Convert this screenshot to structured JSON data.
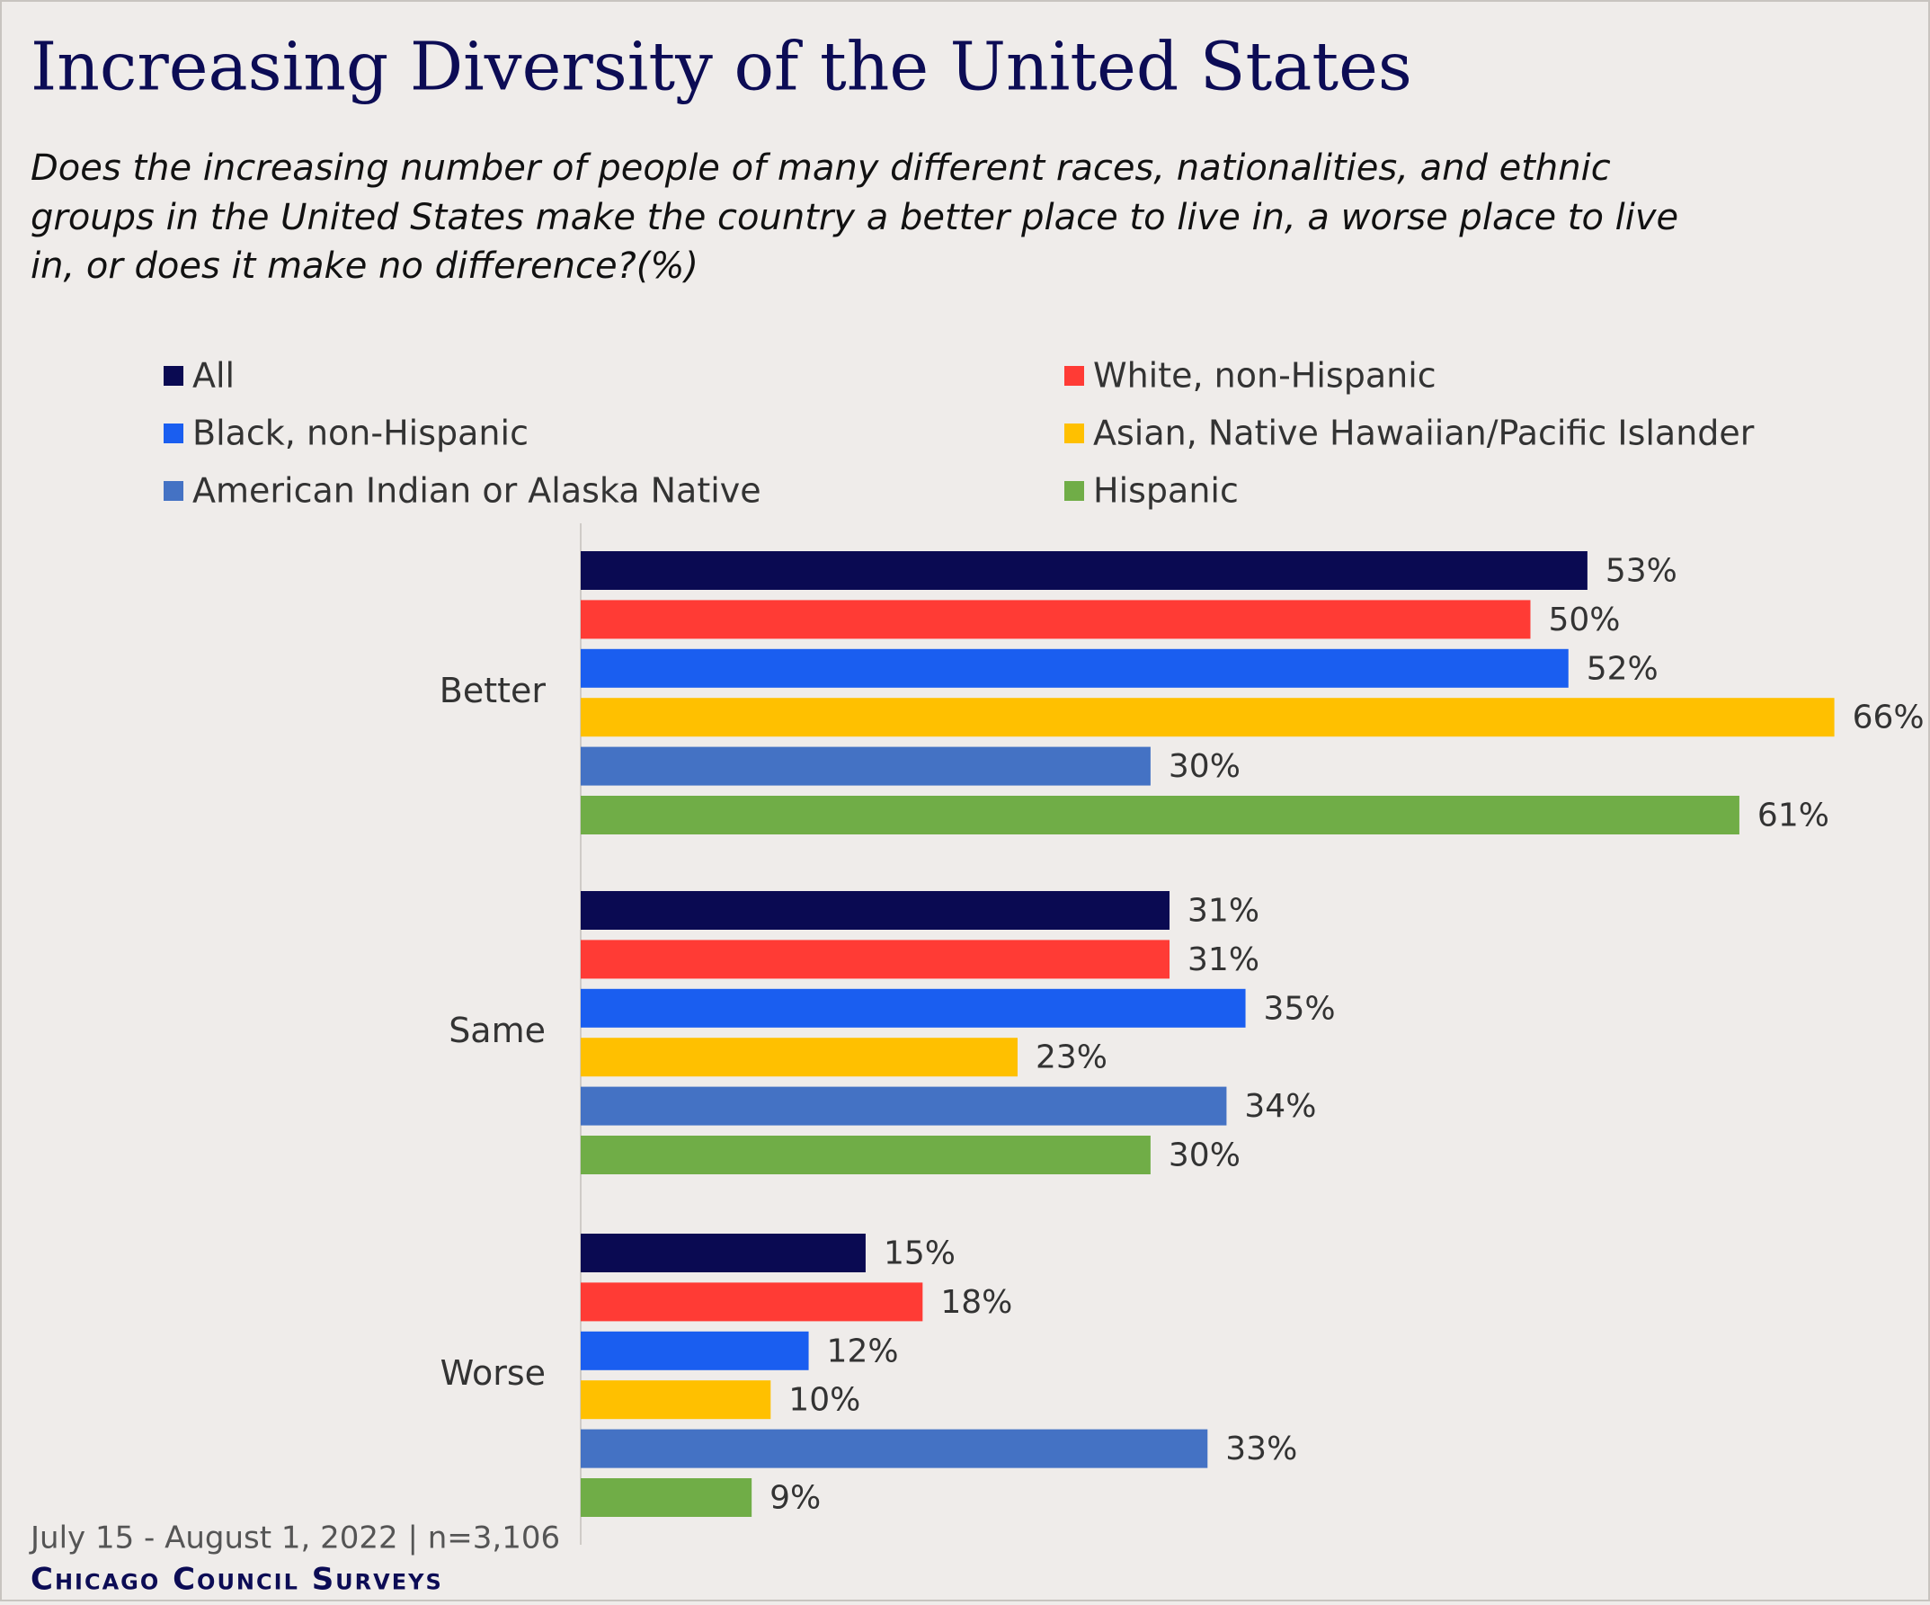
{
  "chart_data": {
    "type": "bar",
    "orientation": "horizontal",
    "title": "Increasing Diversity of the United States",
    "subtitle": [
      "Does the increasing number of people of many different races, nationalities, and ethnic",
      "groups in the United States make the country a better place to live in, a worse place to live",
      "in, or does it make no difference?(%)"
    ],
    "categories": [
      "Better",
      "Same",
      "Worse"
    ],
    "series": [
      {
        "name": "All",
        "color": "#0a0a52",
        "values": [
          53,
          31,
          15
        ],
        "value_labels": [
          "53%",
          "31%",
          "15%"
        ]
      },
      {
        "name": "White, non-Hispanic",
        "color": "#ff3b35",
        "values": [
          50,
          31,
          18
        ],
        "value_labels": [
          "50%",
          "31%",
          "18%"
        ]
      },
      {
        "name": "Black, non-Hispanic",
        "color": "#1a5ef0",
        "values": [
          52,
          35,
          12
        ],
        "value_labels": [
          "52%",
          "35%",
          "12%"
        ]
      },
      {
        "name": "Asian, Native Hawaiian/Pacific Islander",
        "color": "#ffc000",
        "values": [
          66,
          23,
          10
        ],
        "value_labels": [
          "66%",
          "23%",
          "10%"
        ]
      },
      {
        "name": "American Indian or Alaska Native",
        "color": "#4472c4",
        "values": [
          30,
          34,
          33
        ],
        "value_labels": [
          "30%",
          "34%",
          "33%"
        ]
      },
      {
        "name": "Hispanic",
        "color": "#70ad47",
        "values": [
          61,
          30,
          9
        ],
        "value_labels": [
          "61%",
          "30%",
          "9%"
        ]
      }
    ],
    "note": "July 15 - August 1, 2022 | n=3,106",
    "source": "Chicago Council Surveys"
  }
}
